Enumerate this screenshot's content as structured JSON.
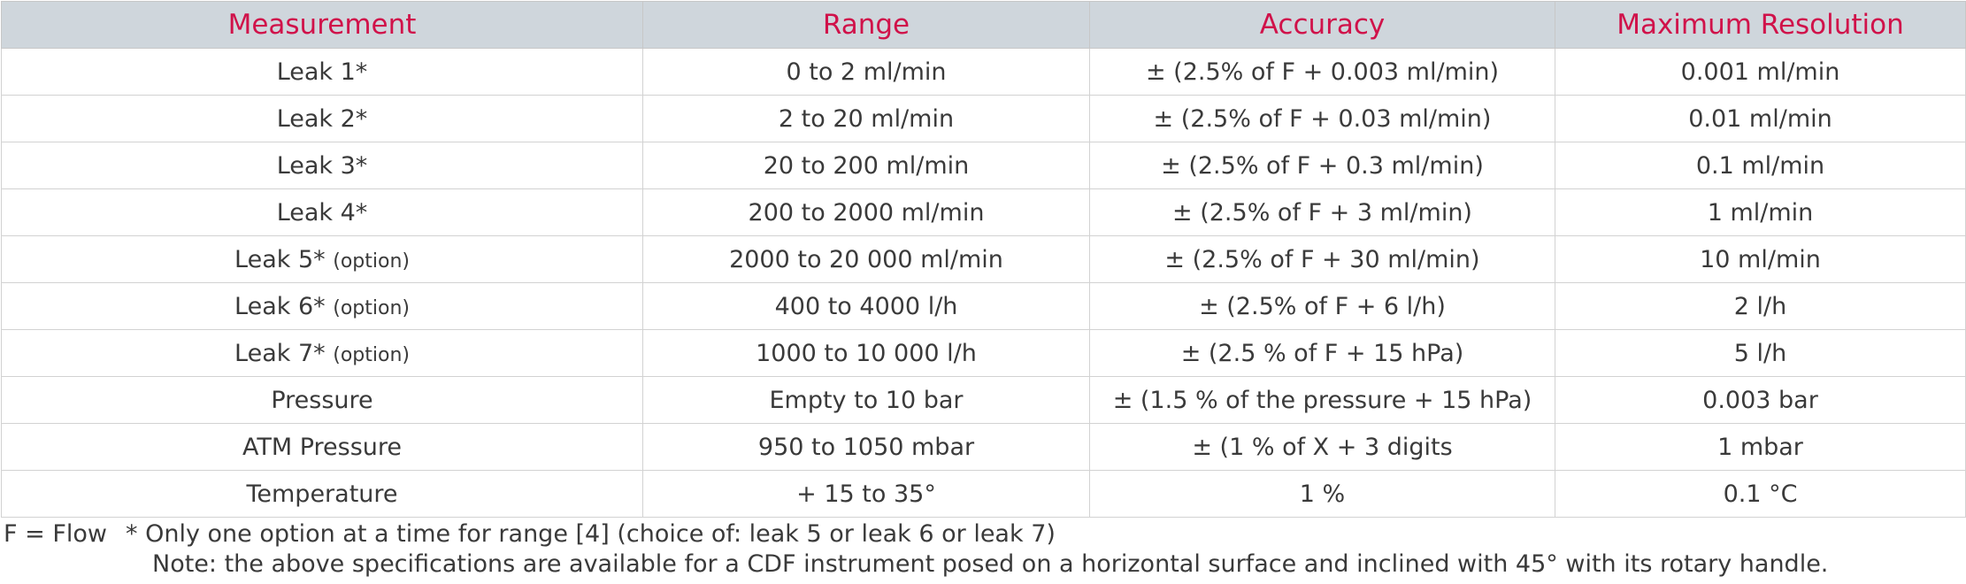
{
  "table": {
    "headers": [
      "Measurement",
      "Range",
      "Accuracy",
      "Maximum Resolution"
    ],
    "rows": [
      {
        "measurement": "Leak 1*",
        "option": "",
        "range": "0 to 2 ml/min",
        "accuracy": "± (2.5% of F + 0.003 ml/min)",
        "resolution": "0.001 ml/min"
      },
      {
        "measurement": "Leak 2*",
        "option": "",
        "range": "2 to 20 ml/min",
        "accuracy": "± (2.5% of F + 0.03 ml/min)",
        "resolution": "0.01 ml/min"
      },
      {
        "measurement": "Leak 3*",
        "option": "",
        "range": "20 to 200 ml/min",
        "accuracy": "± (2.5% of F + 0.3 ml/min)",
        "resolution": "0.1 ml/min"
      },
      {
        "measurement": "Leak 4*",
        "option": "",
        "range": "200 to 2000 ml/min",
        "accuracy": "± (2.5% of F + 3 ml/min)",
        "resolution": "1 ml/min"
      },
      {
        "measurement": "Leak 5*",
        "option": "(option)",
        "range": "2000 to 20 000 ml/min",
        "accuracy": "± (2.5% of F + 30 ml/min)",
        "resolution": "10 ml/min"
      },
      {
        "measurement": "Leak 6*",
        "option": "(option)",
        "range": "400 to 4000 l/h",
        "accuracy": "± (2.5% of F + 6 l/h)",
        "resolution": "2 l/h"
      },
      {
        "measurement": "Leak 7*",
        "option": "(option)",
        "range": "1000 to 10 000 l/h",
        "accuracy": "± (2.5 % of F + 15 hPa)",
        "resolution": "5 l/h"
      },
      {
        "measurement": "Pressure",
        "option": "",
        "range": "Empty to 10 bar",
        "accuracy": "± (1.5 % of the pressure + 15 hPa)",
        "resolution": "0.003 bar"
      },
      {
        "measurement": "ATM Pressure",
        "option": "",
        "range": "950 to 1050 mbar",
        "accuracy": "± (1 % of X + 3 digits",
        "resolution": "1 mbar"
      },
      {
        "measurement": "Temperature",
        "option": "",
        "range": "+ 15 to 35°",
        "accuracy": "1 %",
        "resolution": "0.1 °C"
      }
    ]
  },
  "footer": {
    "flow_key": "F = Flow",
    "option_note": "* Only one option at a time for range [4] (choice of: leak 5 or leak 6 or leak 7)",
    "spec_note": "Note: the above specifications are available for a CDF instrument posed on a horizontal surface and inclined with 45° with its rotary handle."
  },
  "colors": {
    "header_text": "#d0124a",
    "header_bg": "#cfd6dc",
    "body_text": "#3a3a3a",
    "grid": "#d2d2d2"
  }
}
